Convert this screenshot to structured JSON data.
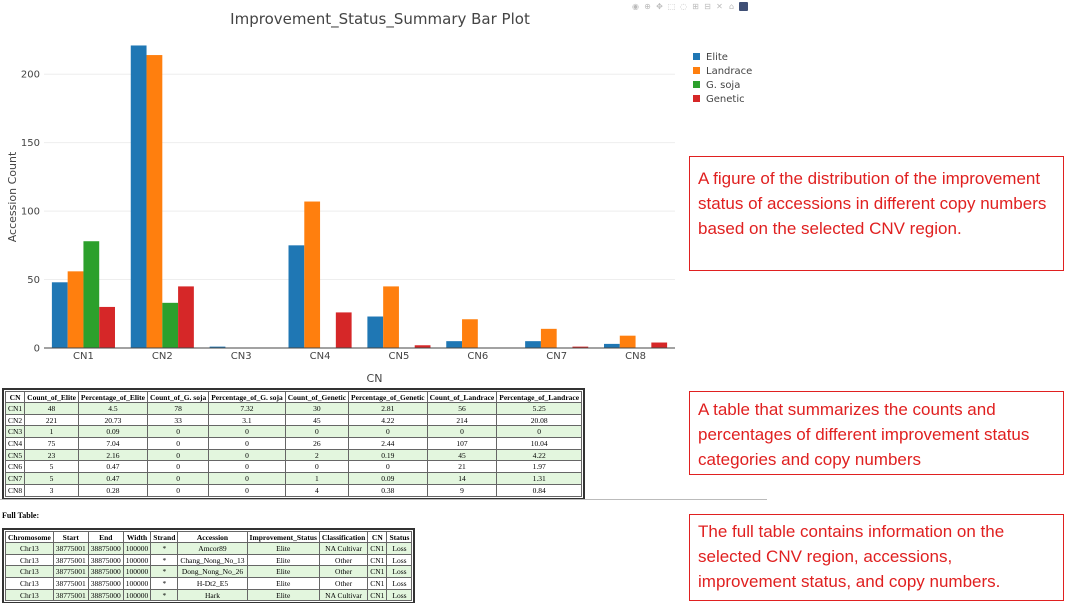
{
  "modebar": {
    "icons": [
      "camera-icon",
      "zoom-icon",
      "pan-icon",
      "box-select-icon",
      "lasso-icon",
      "zoom-in-icon",
      "zoom-out-icon",
      "autoscale-icon",
      "reset-axes-icon",
      "plotly-logo-icon"
    ],
    "glyphs": [
      "◉",
      "⊕",
      "✥",
      "⬚",
      "◌",
      "⊞",
      "⊟",
      "✕",
      "⌂",
      ""
    ]
  },
  "chart_data": {
    "type": "bar",
    "title": "Improvement_Status_Summary Bar Plot",
    "xlabel": "CN",
    "ylabel": "Accession Count",
    "categories": [
      "CN1",
      "CN2",
      "CN3",
      "CN4",
      "CN5",
      "CN6",
      "CN7",
      "CN8"
    ],
    "ylim": [
      0,
      225
    ],
    "yticks": [
      0,
      50,
      100,
      150,
      200
    ],
    "grid": true,
    "legend_position": "top-right",
    "series": [
      {
        "name": "Elite",
        "color": "#1f77b4",
        "values": [
          48,
          221,
          1,
          75,
          23,
          5,
          5,
          3
        ]
      },
      {
        "name": "Landrace",
        "color": "#ff7f0e",
        "values": [
          56,
          214,
          0,
          107,
          45,
          21,
          14,
          9
        ]
      },
      {
        "name": "G. soja",
        "color": "#2ca02c",
        "values": [
          78,
          33,
          0,
          0,
          0,
          0,
          0,
          0
        ]
      },
      {
        "name": "Genetic",
        "color": "#d62728",
        "values": [
          30,
          45,
          0,
          26,
          2,
          0,
          1,
          4
        ]
      }
    ]
  },
  "summary_table": {
    "headers": [
      "CN",
      "Count_of_Elite",
      "Percentage_of_Elite",
      "Count_of_G. soja",
      "Percentage_of_G. soja",
      "Count_of_Genetic",
      "Percentage_of_Genetic",
      "Count_of_Landrace",
      "Percentage_of_Landrace"
    ],
    "rows": [
      [
        "CN1",
        "48",
        "4.5",
        "78",
        "7.32",
        "30",
        "2.81",
        "56",
        "5.25"
      ],
      [
        "CN2",
        "221",
        "20.73",
        "33",
        "3.1",
        "45",
        "4.22",
        "214",
        "20.08"
      ],
      [
        "CN3",
        "1",
        "0.09",
        "0",
        "0",
        "0",
        "0",
        "0",
        "0"
      ],
      [
        "CN4",
        "75",
        "7.04",
        "0",
        "0",
        "26",
        "2.44",
        "107",
        "10.04"
      ],
      [
        "CN5",
        "23",
        "2.16",
        "0",
        "0",
        "2",
        "0.19",
        "45",
        "4.22"
      ],
      [
        "CN6",
        "5",
        "0.47",
        "0",
        "0",
        "0",
        "0",
        "21",
        "1.97"
      ],
      [
        "CN7",
        "5",
        "0.47",
        "0",
        "0",
        "1",
        "0.09",
        "14",
        "1.31"
      ],
      [
        "CN8",
        "3",
        "0.28",
        "0",
        "0",
        "4",
        "0.38",
        "9",
        "0.84"
      ]
    ]
  },
  "full_table_label": "Full Table:",
  "full_table": {
    "headers": [
      "Chromosome",
      "Start",
      "End",
      "Width",
      "Strand",
      "Accession",
      "Improvement_Status",
      "Classification",
      "CN",
      "Status"
    ],
    "rows": [
      [
        "Chr13",
        "38775001",
        "38875000",
        "100000",
        "*",
        "Amcor89",
        "Elite",
        "NA Cultivar",
        "CN1",
        "Loss"
      ],
      [
        "Chr13",
        "38775001",
        "38875000",
        "100000",
        "*",
        "Chang_Nong_No_13",
        "Elite",
        "Other",
        "CN1",
        "Loss"
      ],
      [
        "Chr13",
        "38775001",
        "38875000",
        "100000",
        "*",
        "Dong_Nong_No_26",
        "Elite",
        "Other",
        "CN1",
        "Loss"
      ],
      [
        "Chr13",
        "38775001",
        "38875000",
        "100000",
        "*",
        "H-Dt2_E5",
        "Elite",
        "Other",
        "CN1",
        "Loss"
      ],
      [
        "Chr13",
        "38775001",
        "38875000",
        "100000",
        "*",
        "Hark",
        "Elite",
        "NA Cultivar",
        "CN1",
        "Loss"
      ]
    ]
  },
  "annotations": {
    "figure": "A figure of the distribution of the improvement status of accessions in different copy numbers based on the selected CNV region.",
    "table": "A table that summarizes the counts and percentages of different improvement status categories and copy numbers",
    "full_table": "The full table contains information on the selected CNV region, accessions, improvement status, and copy numbers."
  }
}
